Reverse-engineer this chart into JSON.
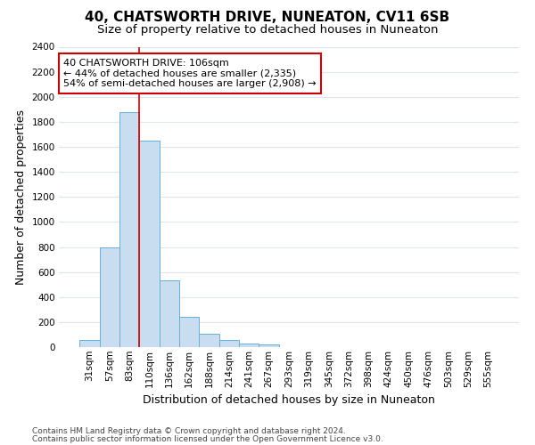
{
  "title": "40, CHATSWORTH DRIVE, NUNEATON, CV11 6SB",
  "subtitle": "Size of property relative to detached houses in Nuneaton",
  "xlabel": "Distribution of detached houses by size in Nuneaton",
  "ylabel": "Number of detached properties",
  "categories": [
    "31sqm",
    "57sqm",
    "83sqm",
    "110sqm",
    "136sqm",
    "162sqm",
    "188sqm",
    "214sqm",
    "241sqm",
    "267sqm",
    "293sqm",
    "319sqm",
    "345sqm",
    "372sqm",
    "398sqm",
    "424sqm",
    "450sqm",
    "476sqm",
    "503sqm",
    "529sqm",
    "555sqm"
  ],
  "values": [
    60,
    800,
    1880,
    1650,
    535,
    240,
    108,
    58,
    32,
    18,
    0,
    0,
    0,
    0,
    0,
    0,
    0,
    0,
    0,
    0,
    0
  ],
  "bar_color": "#c8ddf0",
  "bar_edge_color": "#6aaed6",
  "red_line_color": "#cc0000",
  "annotation_text": "40 CHATSWORTH DRIVE: 106sqm\n← 44% of detached houses are smaller (2,335)\n54% of semi-detached houses are larger (2,908) →",
  "annotation_box_facecolor": "#ffffff",
  "annotation_box_edgecolor": "#cc0000",
  "ylim": [
    0,
    2400
  ],
  "yticks": [
    0,
    200,
    400,
    600,
    800,
    1000,
    1200,
    1400,
    1600,
    1800,
    2000,
    2200,
    2400
  ],
  "background_color": "#ffffff",
  "plot_background_color": "#ffffff",
  "grid_color": "#d8e4f0",
  "title_fontsize": 11,
  "subtitle_fontsize": 9.5,
  "axis_label_fontsize": 9,
  "tick_fontsize": 7.5,
  "annotation_fontsize": 8,
  "footer_line1": "Contains HM Land Registry data © Crown copyright and database right 2024.",
  "footer_line2": "Contains public sector information licensed under the Open Government Licence v3.0.",
  "footer_fontsize": 6.5
}
